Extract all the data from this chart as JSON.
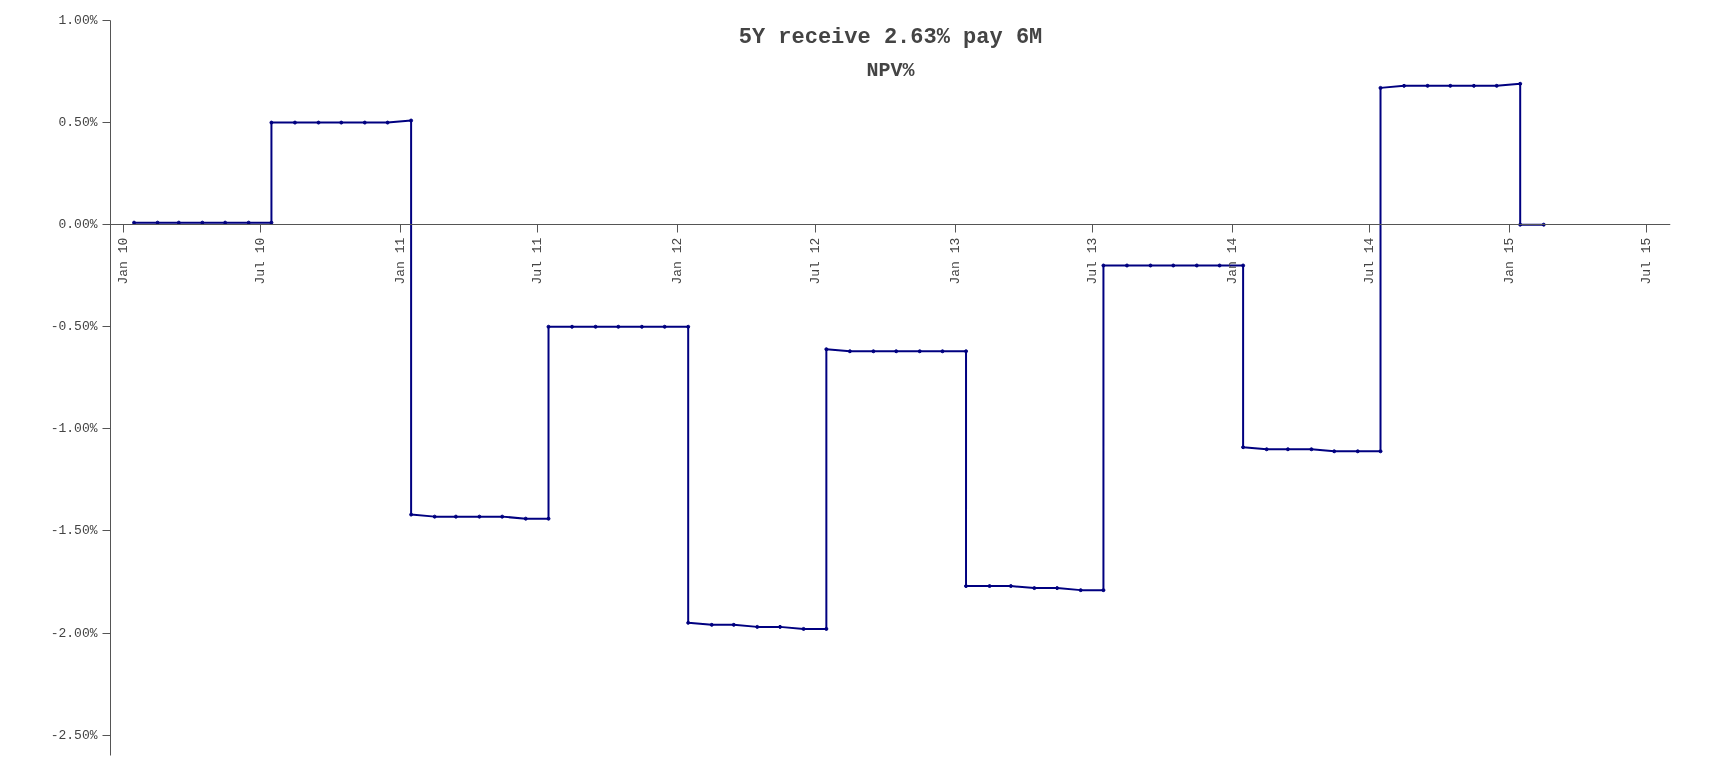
{
  "chart_data": {
    "type": "line",
    "title": "5Y receive 2.63% pay 6M",
    "subtitle": "NPV%",
    "x": [
      "2010-01-15",
      "2010-02-15",
      "2010-03-15",
      "2010-04-15",
      "2010-05-15",
      "2010-06-15",
      "2010-07-15",
      "2010-07-15",
      "2010-08-15",
      "2010-09-15",
      "2010-10-15",
      "2010-11-15",
      "2010-12-15",
      "2011-01-15",
      "2011-01-15",
      "2011-02-15",
      "2011-03-15",
      "2011-04-15",
      "2011-05-15",
      "2011-06-15",
      "2011-07-15",
      "2011-07-15",
      "2011-08-15",
      "2011-09-15",
      "2011-10-15",
      "2011-11-15",
      "2011-12-15",
      "2012-01-15",
      "2012-01-15",
      "2012-02-15",
      "2012-03-15",
      "2012-04-15",
      "2012-05-15",
      "2012-06-15",
      "2012-07-15",
      "2012-07-15",
      "2012-08-15",
      "2012-09-15",
      "2012-10-15",
      "2012-11-15",
      "2012-12-15",
      "2013-01-15",
      "2013-01-15",
      "2013-02-15",
      "2013-03-15",
      "2013-04-15",
      "2013-05-15",
      "2013-06-15",
      "2013-07-15",
      "2013-07-15",
      "2013-08-15",
      "2013-09-15",
      "2013-10-15",
      "2013-11-15",
      "2013-12-15",
      "2014-01-15",
      "2014-01-15",
      "2014-02-15",
      "2014-03-15",
      "2014-04-15",
      "2014-05-15",
      "2014-06-15",
      "2014-07-15",
      "2014-07-15",
      "2014-08-15",
      "2014-09-15",
      "2014-10-15",
      "2014-11-15",
      "2014-12-15",
      "2015-01-15",
      "2015-01-15",
      "2015-02-15"
    ],
    "series": [
      {
        "color": "#000080",
        "values": [
          0.01,
          0.01,
          0.01,
          0.01,
          0.01,
          0.01,
          0.01,
          0.5,
          0.5,
          0.5,
          0.5,
          0.5,
          0.5,
          0.51,
          -1.42,
          -1.43,
          -1.43,
          -1.43,
          -1.43,
          -1.44,
          -1.44,
          -0.5,
          -0.5,
          -0.5,
          -0.5,
          -0.5,
          -0.5,
          -0.5,
          -1.95,
          -1.96,
          -1.96,
          -1.97,
          -1.97,
          -1.98,
          -1.98,
          -0.61,
          -0.62,
          -0.62,
          -0.62,
          -0.62,
          -0.62,
          -0.62,
          -1.77,
          -1.77,
          -1.77,
          -1.78,
          -1.78,
          -1.79,
          -1.79,
          -0.2,
          -0.2,
          -0.2,
          -0.2,
          -0.2,
          -0.2,
          -0.2,
          -1.09,
          -1.1,
          -1.1,
          -1.1,
          -1.11,
          -1.11,
          -1.11,
          0.67,
          0.68,
          0.68,
          0.68,
          0.68,
          0.68,
          0.69,
          0.0,
          0.0
        ]
      }
    ],
    "xlim": [
      "2009-12-15",
      "2015-08-01"
    ],
    "xticks": [
      {
        "value": "2010-01-01",
        "label": "Jan 10"
      },
      {
        "value": "2010-07-01",
        "label": "Jul 10"
      },
      {
        "value": "2011-01-01",
        "label": "Jan 11"
      },
      {
        "value": "2011-07-01",
        "label": "Jul 11"
      },
      {
        "value": "2012-01-01",
        "label": "Jan 12"
      },
      {
        "value": "2012-07-01",
        "label": "Jul 12"
      },
      {
        "value": "2013-01-01",
        "label": "Jan 13"
      },
      {
        "value": "2013-07-01",
        "label": "Jul 13"
      },
      {
        "value": "2014-01-01",
        "label": "Jan 14"
      },
      {
        "value": "2014-07-01",
        "label": "Jul 14"
      },
      {
        "value": "2015-01-01",
        "label": "Jan 15"
      },
      {
        "value": "2015-07-01",
        "label": "Jul 15"
      }
    ],
    "ylim": [
      -2.6,
      1.0
    ],
    "yticks": [
      {
        "value": 1.0,
        "label": "1.00%"
      },
      {
        "value": 0.5,
        "label": "0.50%"
      },
      {
        "value": 0.0,
        "label": "0.00%"
      },
      {
        "value": -0.5,
        "label": "-0.50%"
      },
      {
        "value": -1.0,
        "label": "-1.00%"
      },
      {
        "value": -1.5,
        "label": "-1.50%"
      },
      {
        "value": -2.0,
        "label": "-2.00%"
      },
      {
        "value": -2.5,
        "label": "-2.50%"
      }
    ],
    "grid": false,
    "marker": "circle",
    "line_style": "solid"
  }
}
